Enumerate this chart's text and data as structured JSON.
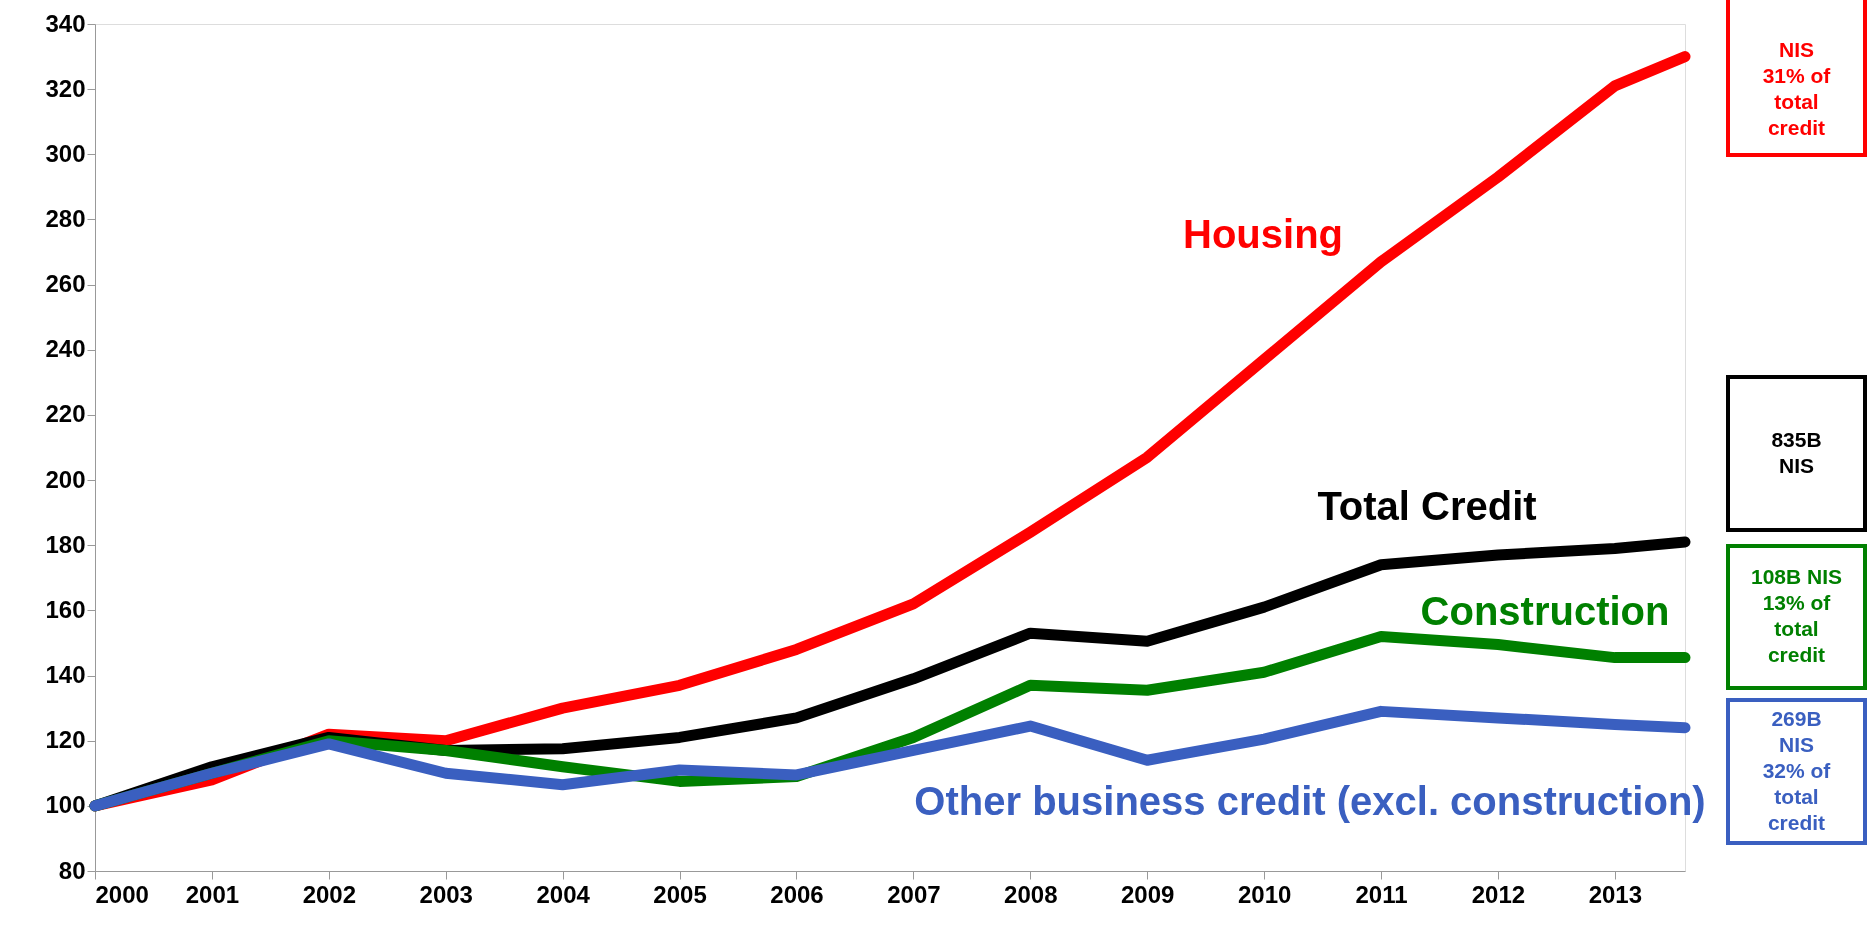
{
  "chart_data": {
    "type": "line",
    "x": [
      2000,
      2001,
      2002,
      2003,
      2004,
      2005,
      2006,
      2007,
      2008,
      2009,
      2010,
      2011,
      2012,
      2013,
      2013.6
    ],
    "xlim": [
      2000,
      2013.6
    ],
    "xticks": [
      2000,
      2001,
      2002,
      2003,
      2004,
      2005,
      2006,
      2007,
      2008,
      2009,
      2010,
      2011,
      2012,
      2013
    ],
    "ylim": [
      80,
      340
    ],
    "yticks": [
      80,
      100,
      120,
      140,
      160,
      180,
      200,
      220,
      240,
      260,
      280,
      300,
      320,
      340
    ],
    "grid": false,
    "marker": "none",
    "line_style": "solid",
    "series": [
      {
        "name": "Housing",
        "color": "#ff0000",
        "values": [
          100,
          108,
          122,
          120,
          130,
          137,
          148,
          162,
          184,
          207,
          237,
          267,
          293,
          321,
          330
        ]
      },
      {
        "name": "Total Credit",
        "color": "#000000",
        "values": [
          100,
          112,
          121,
          117,
          117.5,
          121,
          127,
          139,
          153,
          150.5,
          161,
          174,
          177,
          179,
          181
        ]
      },
      {
        "name": "Construction",
        "color": "#008000",
        "values": [
          100,
          110,
          120,
          117,
          112,
          107.5,
          109,
          121,
          137,
          135.5,
          141,
          152,
          149.5,
          145.5,
          145.5
        ]
      },
      {
        "name": "Other business credit (excl. construction)",
        "color": "#3a5fc0",
        "values": [
          100,
          110,
          119,
          110,
          106.5,
          111,
          109.5,
          117,
          124.5,
          114,
          120.5,
          129,
          127,
          125,
          124
        ]
      }
    ],
    "annotations": [
      "NIS\n31% of\ntotal\ncredit",
      "835B\nNIS",
      "108B NIS\n13% of\ntotal\ncredit",
      "269B\nNIS\n32% of\ntotal\ncredit"
    ]
  }
}
